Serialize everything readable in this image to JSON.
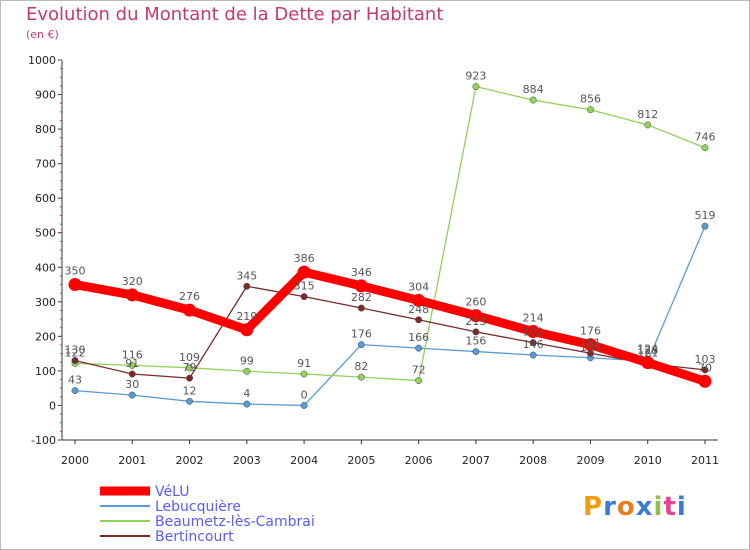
{
  "chart_data": {
    "type": "line",
    "title": "Evolution du Montant de la Dette par Habitant",
    "subtitle": "(en €)",
    "x": [
      "2000",
      "2001",
      "2002",
      "2003",
      "2004",
      "2005",
      "2006",
      "2007",
      "2008",
      "2009",
      "2010",
      "2011"
    ],
    "ylim": [
      -100,
      1000
    ],
    "yticks": [
      -100,
      0,
      100,
      200,
      300,
      400,
      500,
      600,
      700,
      800,
      900,
      1000
    ],
    "grid": false,
    "legend_position": "bottom-left",
    "series": [
      {
        "name": "VéLU",
        "color": "#ff0000",
        "values": [
          350,
          320,
          276,
          219,
          386,
          346,
          304,
          260,
          214,
          176,
          124,
          70
        ]
      },
      {
        "name": "Lebucquière",
        "color": "#5b9bd5",
        "values": [
          43,
          30,
          12,
          4,
          0,
          176,
          166,
          156,
          146,
          138,
          128,
          519
        ]
      },
      {
        "name": "Beaumetz-lès-Cambrai",
        "color": "#8fd35a",
        "values": [
          122,
          116,
          109,
          99,
          91,
          82,
          72,
          923,
          884,
          856,
          812,
          746
        ]
      },
      {
        "name": "Bertincourt",
        "color": "#7b2a2a",
        "values": [
          130,
          91,
          79,
          345,
          315,
          282,
          248,
          213,
          182,
          151,
          121,
          103
        ]
      }
    ]
  },
  "logo": {
    "text": "Proxiti"
  }
}
